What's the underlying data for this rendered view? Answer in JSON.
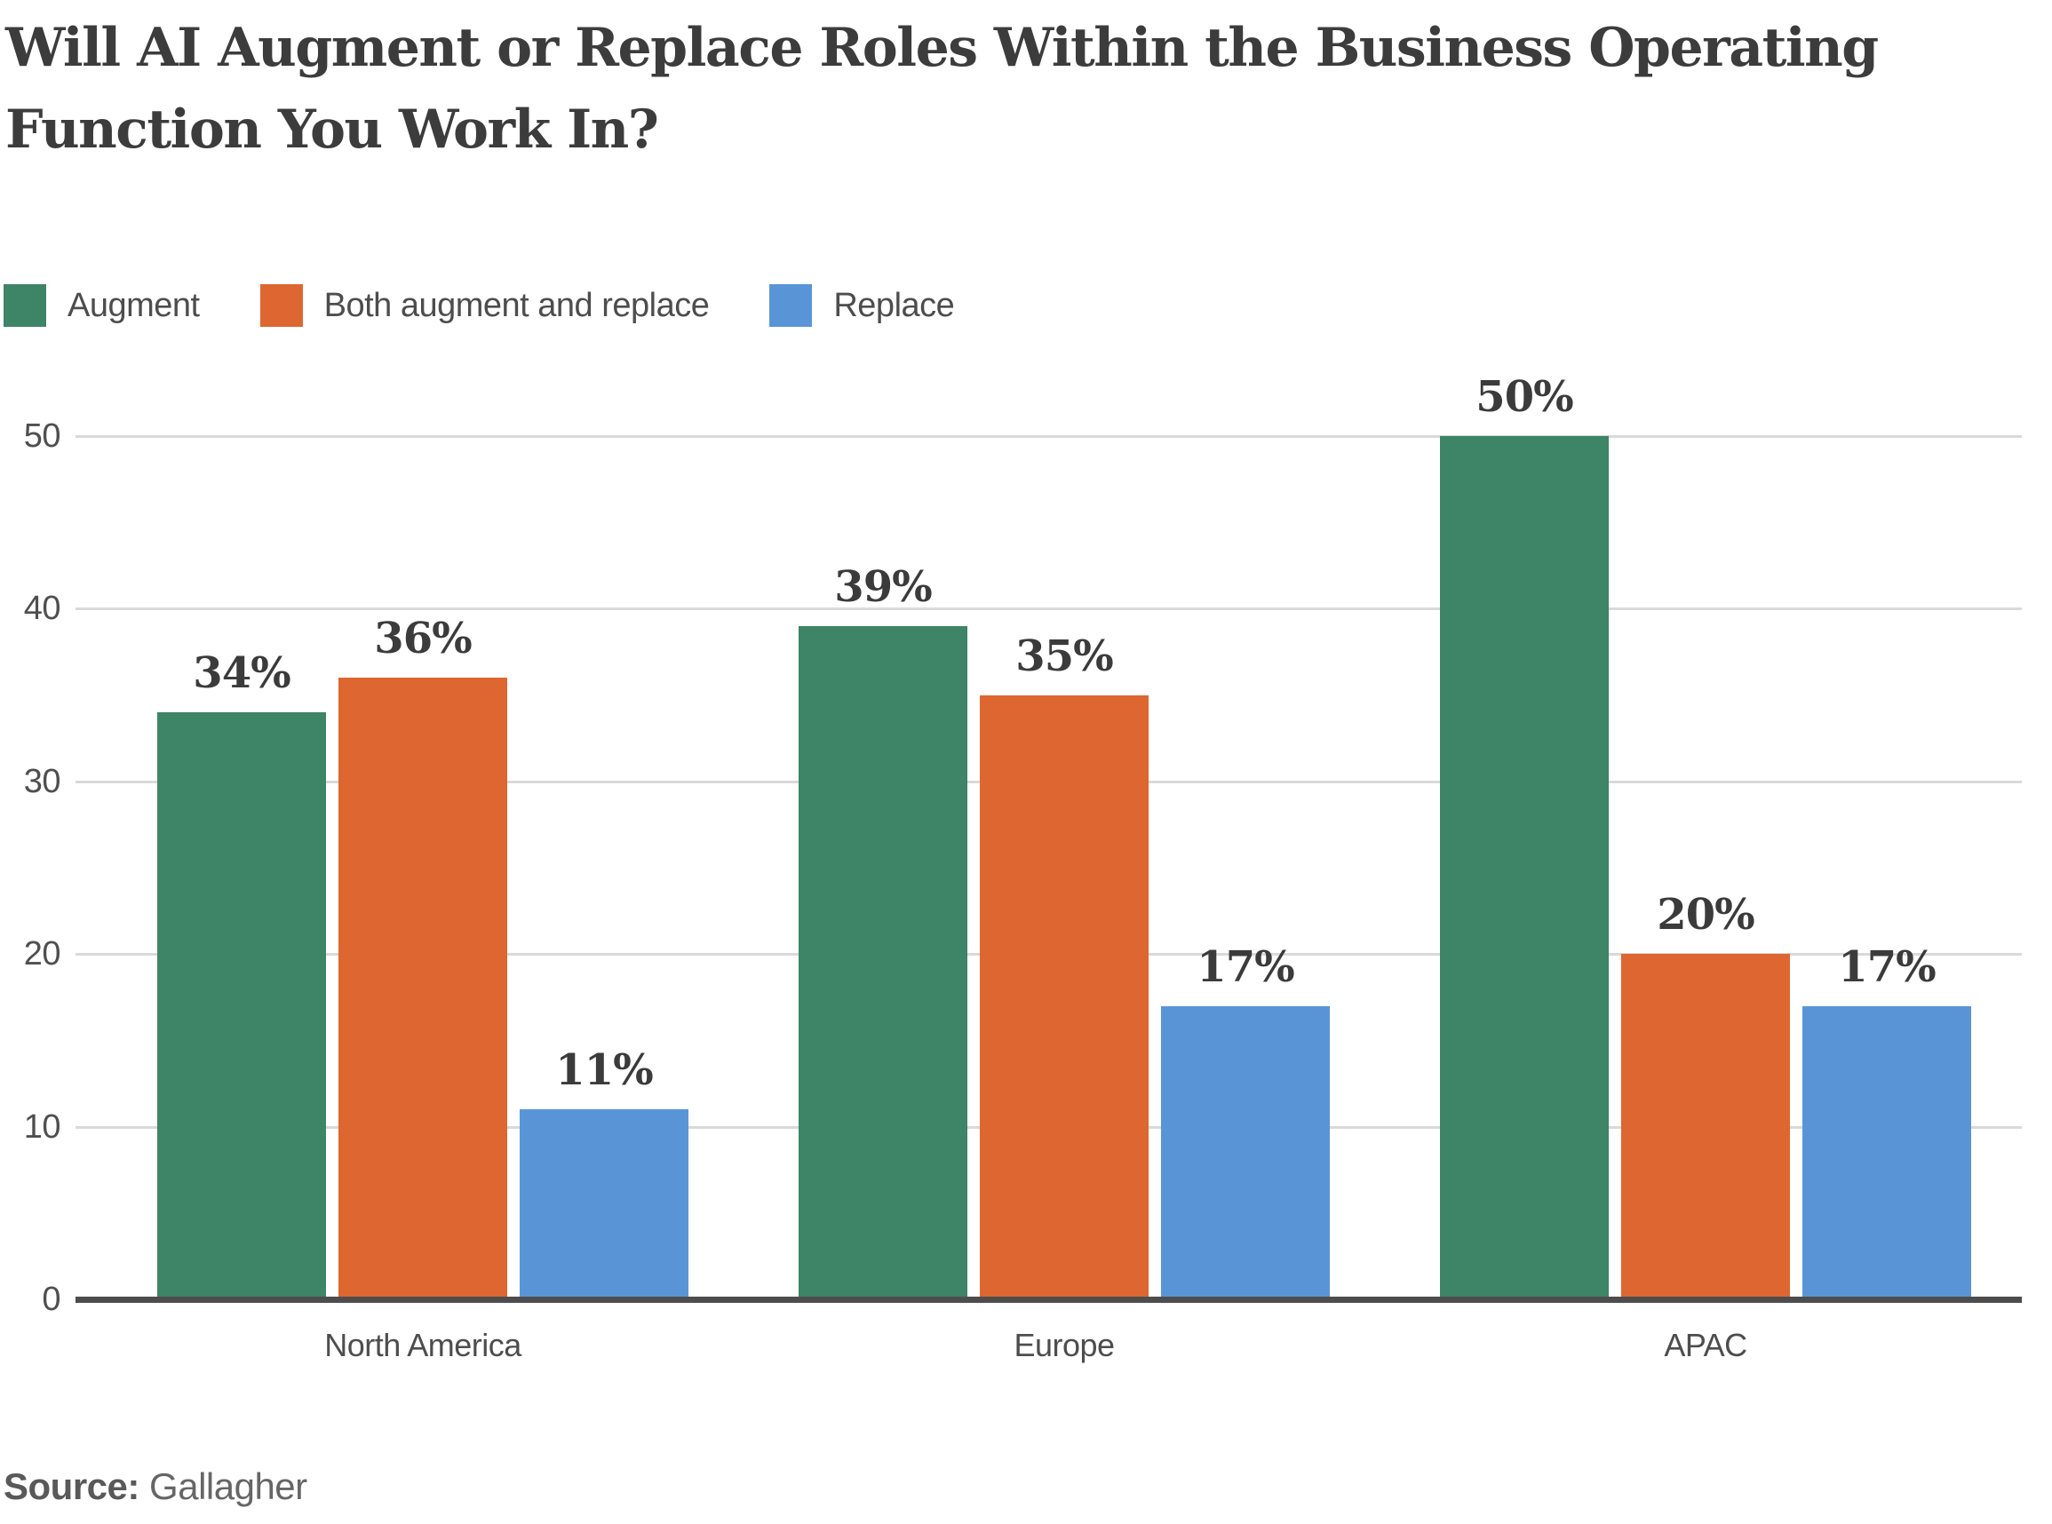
{
  "title": {
    "line1": "Will AI Augment or Replace Roles Within the Business Operating",
    "line2": "Function You Work In?"
  },
  "legend": [
    {
      "label": "Augment",
      "color": "#3E8466"
    },
    {
      "label": "Both augment and replace",
      "color": "#DD6631"
    },
    {
      "label": "Replace",
      "color": "#5995D6"
    }
  ],
  "source": {
    "label": "Source:",
    "value": "Gallagher"
  },
  "chart_data": {
    "type": "bar",
    "title": "Will AI Augment or Replace Roles Within the Business Operating Function You Work In?",
    "categories": [
      "North America",
      "Europe",
      "APAC"
    ],
    "series": [
      {
        "name": "Augment",
        "color": "#3E8466",
        "values": [
          34,
          39,
          50
        ]
      },
      {
        "name": "Both augment and replace",
        "color": "#DD6631",
        "values": [
          36,
          35,
          20
        ]
      },
      {
        "name": "Replace",
        "color": "#5995D6",
        "values": [
          11,
          17,
          17
        ]
      }
    ],
    "value_suffix": "%",
    "y_ticks": [
      0,
      10,
      20,
      30,
      40,
      50
    ],
    "ylim": [
      0,
      50
    ],
    "grid": true,
    "legend_position": "top",
    "colors": {
      "grid": "#d9d9d9",
      "axis": "#4d4d4d",
      "title_text": "#3c3c3c",
      "label_text": "#4d4d4d",
      "value_text": "#3b3b3b"
    }
  }
}
